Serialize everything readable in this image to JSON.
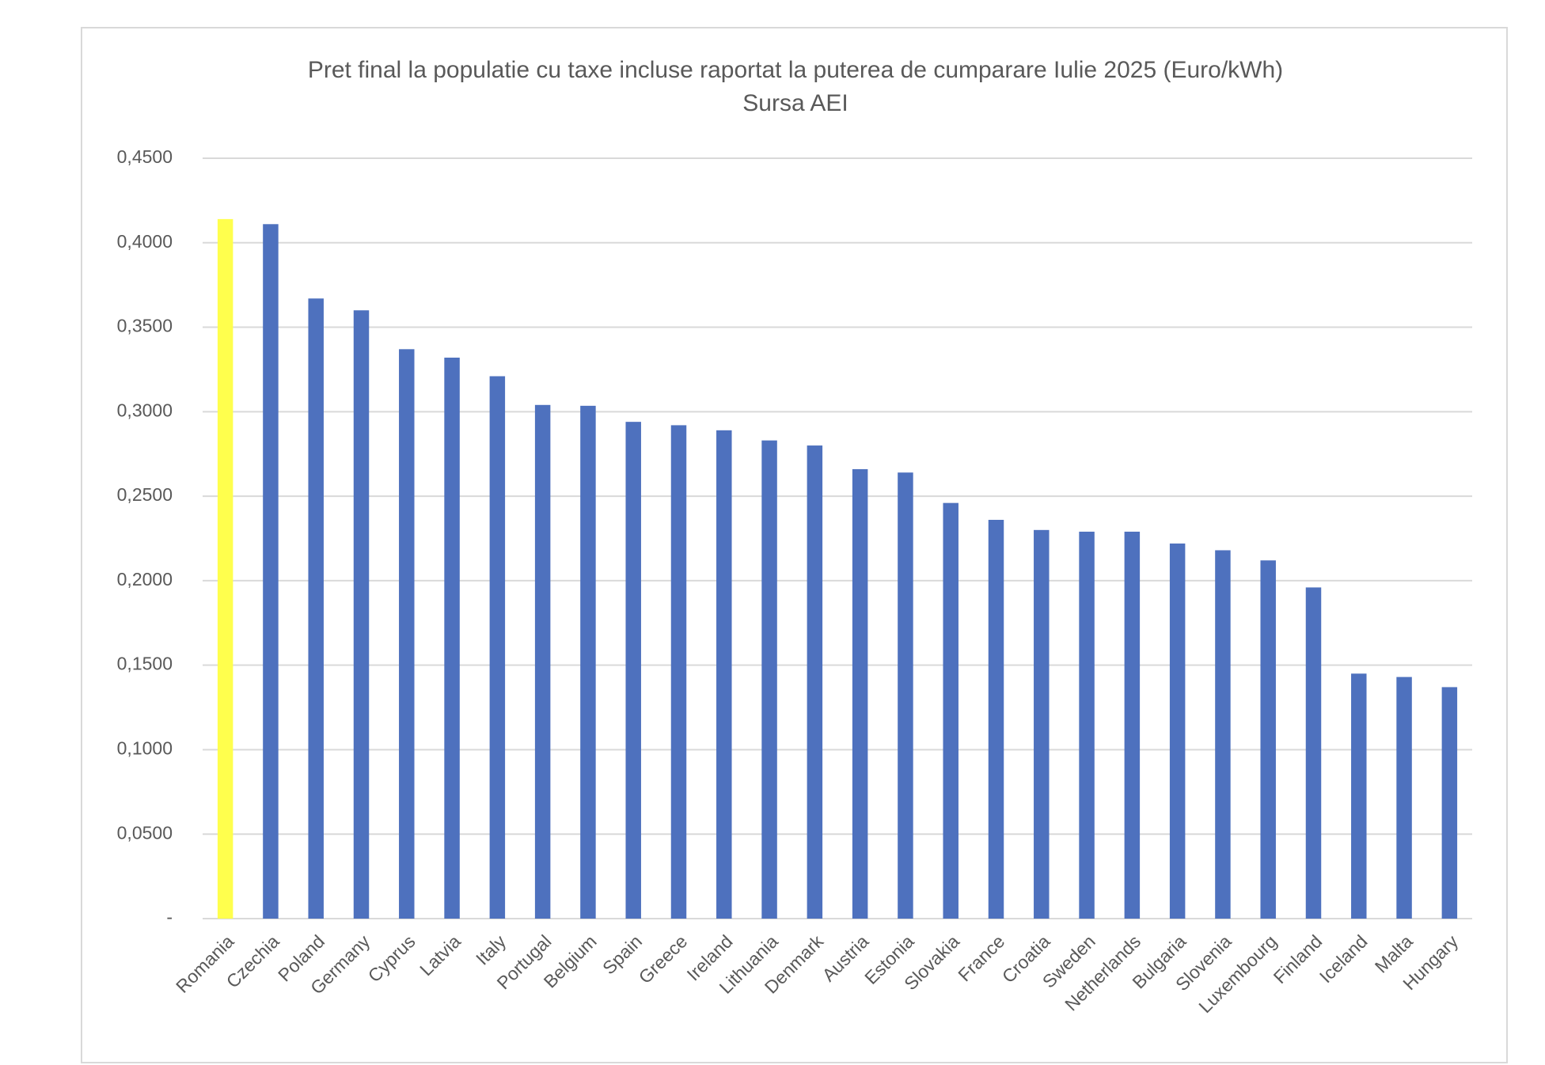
{
  "chart_data": {
    "type": "bar",
    "title": "Pret final la populatie cu taxe incluse raportat la puterea de cumparare Iulie 2025 (Euro/kWh)",
    "subtitle": "Sursa AEI",
    "categories": [
      "Romania",
      "Czechia",
      "Poland",
      "Germany",
      "Cyprus",
      "Latvia",
      "Italy",
      "Portugal",
      "Belgium",
      "Spain",
      "Greece",
      "Ireland",
      "Lithuania",
      "Denmark",
      "Austria",
      "Estonia",
      "Slovakia",
      "France",
      "Croatia",
      "Sweden",
      "Netherlands",
      "Bulgaria",
      "Slovenia",
      "Luxembourg",
      "Finland",
      "Iceland",
      "Malta",
      "Hungary"
    ],
    "values": [
      0.414,
      0.411,
      0.367,
      0.36,
      0.337,
      0.332,
      0.321,
      0.304,
      0.3035,
      0.294,
      0.292,
      0.289,
      0.283,
      0.28,
      0.266,
      0.264,
      0.246,
      0.236,
      0.23,
      0.229,
      0.229,
      0.222,
      0.218,
      0.212,
      0.196,
      0.145,
      0.143,
      0.137
    ],
    "colors": [
      "#ffff4d",
      "#4e71be",
      "#4e71be",
      "#4e71be",
      "#4e71be",
      "#4e71be",
      "#4e71be",
      "#4e71be",
      "#4e71be",
      "#4e71be",
      "#4e71be",
      "#4e71be",
      "#4e71be",
      "#4e71be",
      "#4e71be",
      "#4e71be",
      "#4e71be",
      "#4e71be",
      "#4e71be",
      "#4e71be",
      "#4e71be",
      "#4e71be",
      "#4e71be",
      "#4e71be",
      "#4e71be",
      "#4e71be",
      "#4e71be",
      "#4e71be"
    ],
    "ylim": [
      0,
      0.45
    ],
    "yticks": [
      {
        "value": 0,
        "label": "-"
      },
      {
        "value": 0.05,
        "label": "0,0500"
      },
      {
        "value": 0.1,
        "label": "0,1000"
      },
      {
        "value": 0.15,
        "label": "0,1500"
      },
      {
        "value": 0.2,
        "label": "0,2000"
      },
      {
        "value": 0.25,
        "label": "0,2500"
      },
      {
        "value": 0.3,
        "label": "0,3000"
      },
      {
        "value": 0.35,
        "label": "0,3500"
      },
      {
        "value": 0.4,
        "label": "0,4000"
      },
      {
        "value": 0.45,
        "label": "0,4500"
      }
    ],
    "grid": true
  }
}
